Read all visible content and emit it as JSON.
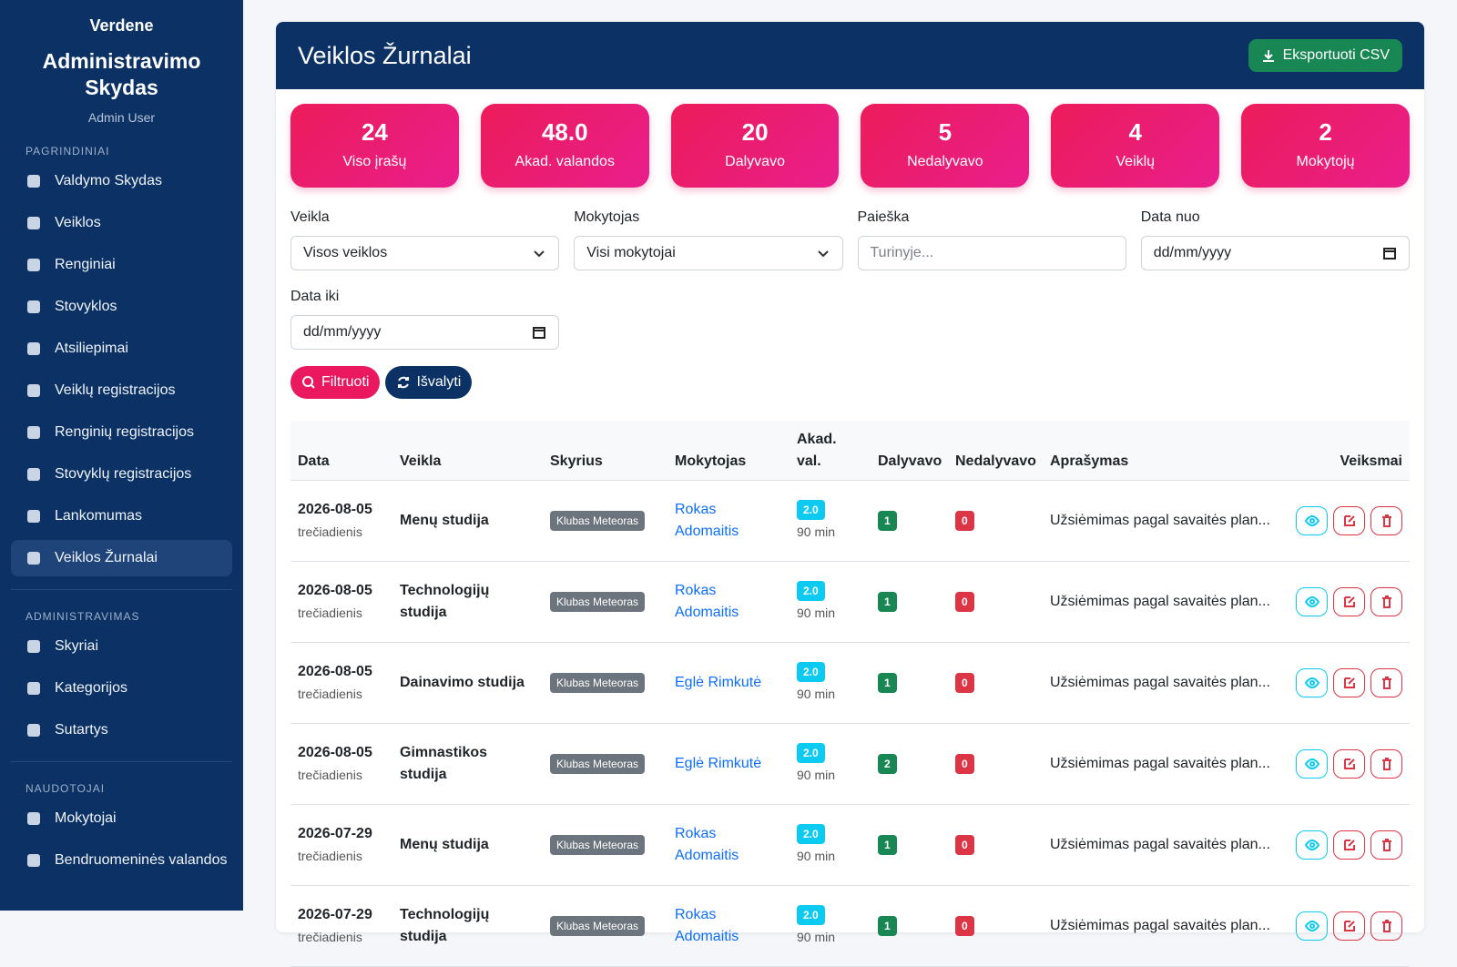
{
  "sidebar": {
    "brand": "Verdene",
    "title": "Administravimo Skydas",
    "user": "Admin User",
    "sections": [
      {
        "heading": "PAGRINDINIAI",
        "items": [
          {
            "label": "Valdymo Skydas"
          },
          {
            "label": "Veiklos"
          },
          {
            "label": "Renginiai"
          },
          {
            "label": "Stovyklos"
          },
          {
            "label": "Atsiliepimai"
          },
          {
            "label": "Veiklų registracijos"
          },
          {
            "label": "Renginių registracijos"
          },
          {
            "label": "Stovyklų registracijos"
          },
          {
            "label": "Lankomumas"
          },
          {
            "label": "Veiklos Žurnalai",
            "active": true
          }
        ]
      },
      {
        "heading": "ADMINISTRAVIMAS",
        "items": [
          {
            "label": "Skyriai"
          },
          {
            "label": "Kategorijos"
          },
          {
            "label": "Sutartys"
          }
        ]
      },
      {
        "heading": "NAUDOTOJAI",
        "items": [
          {
            "label": "Mokytojai"
          },
          {
            "label": "Bendruomeninės valandos"
          }
        ]
      }
    ]
  },
  "header": {
    "title": "Veiklos Žurnalai",
    "export": "Eksportuoti CSV"
  },
  "stats": [
    {
      "value": "24",
      "label": "Viso įrašų"
    },
    {
      "value": "48.0",
      "label": "Akad. valandos"
    },
    {
      "value": "20",
      "label": "Dalyvavo"
    },
    {
      "value": "5",
      "label": "Nedalyvavo"
    },
    {
      "value": "4",
      "label": "Veiklų"
    },
    {
      "value": "2",
      "label": "Mokytojų"
    }
  ],
  "filters": [
    {
      "label": "Veikla",
      "value": "Visos veiklos",
      "kind": "select"
    },
    {
      "label": "Mokytojas",
      "value": "Visi mokytojai",
      "kind": "select"
    },
    {
      "label": "Paieška",
      "value": "Turinyje...",
      "kind": "text"
    },
    {
      "label": "Data nuo",
      "value": "dd/mm/yyyy",
      "kind": "date"
    },
    {
      "label": "Data iki",
      "value": "dd/mm/yyyy",
      "kind": "date"
    }
  ],
  "buttons": {
    "filter": "Filtruoti",
    "clear": "Išvalyti"
  },
  "table": {
    "columns": [
      "Data",
      "Veikla",
      "Skyrius",
      "Mokytojas",
      "Akad. val.",
      "Dalyvavo",
      "Nedalyvavo",
      "Aprašymas",
      "Veiksmai"
    ],
    "rows": [
      {
        "date": "2026-08-05",
        "weekday": "trečiadienis",
        "activity": "Menų studija",
        "department": "Klubas Meteoras",
        "teacher": "Rokas Adomaitis",
        "hours": "2.0",
        "minutes": "90 min",
        "attended": "1",
        "absent": "0",
        "description": "Užsiėmimas pagal savaitės plan..."
      },
      {
        "date": "2026-08-05",
        "weekday": "trečiadienis",
        "activity": "Technologijų studija",
        "department": "Klubas Meteoras",
        "teacher": "Rokas Adomaitis",
        "hours": "2.0",
        "minutes": "90 min",
        "attended": "1",
        "absent": "0",
        "description": "Užsiėmimas pagal savaitės plan..."
      },
      {
        "date": "2026-08-05",
        "weekday": "trečiadienis",
        "activity": "Dainavimo studija",
        "department": "Klubas Meteoras",
        "teacher": "Eglė Rimkutė",
        "hours": "2.0",
        "minutes": "90 min",
        "attended": "1",
        "absent": "0",
        "description": "Užsiėmimas pagal savaitės plan..."
      },
      {
        "date": "2026-08-05",
        "weekday": "trečiadienis",
        "activity": "Gimnastikos studija",
        "department": "Klubas Meteoras",
        "teacher": "Eglė Rimkutė",
        "hours": "2.0",
        "minutes": "90 min",
        "attended": "2",
        "absent": "0",
        "description": "Užsiėmimas pagal savaitės plan..."
      },
      {
        "date": "2026-07-29",
        "weekday": "trečiadienis",
        "activity": "Menų studija",
        "department": "Klubas Meteoras",
        "teacher": "Rokas Adomaitis",
        "hours": "2.0",
        "minutes": "90 min",
        "attended": "1",
        "absent": "0",
        "description": "Užsiėmimas pagal savaitės plan..."
      },
      {
        "date": "2026-07-29",
        "weekday": "trečiadienis",
        "activity": "Technologijų studija",
        "department": "Klubas Meteoras",
        "teacher": "Rokas Adomaitis",
        "hours": "2.0",
        "minutes": "90 min",
        "attended": "1",
        "absent": "0",
        "description": "Užsiėmimas pagal savaitės plan..."
      }
    ]
  }
}
